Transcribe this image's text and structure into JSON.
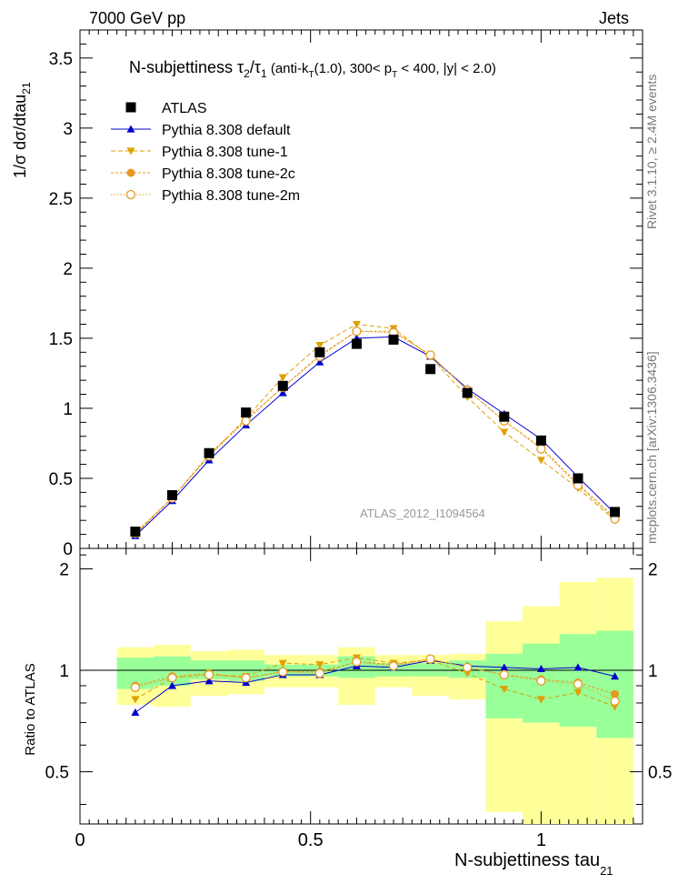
{
  "header": {
    "energy_label": "7000 GeV pp",
    "category_label": "Jets",
    "rivet_label": "Rivet 3.1.10, ≥ 2.4M events",
    "mcplots_label": "mcplots.cern.ch [arXiv:1306.3436]",
    "analysis_id": "ATLAS_2012_I1094564"
  },
  "chart_data": [
    {
      "type": "line",
      "panel": "main",
      "title": "N-subjettiness τ2/τ1 (anti-kT(1.0), 300< pT < 400, |y| < 2.0)",
      "ylabel": "1/σ dσ/dtau21",
      "xlim": [
        0,
        1.22
      ],
      "ylim": [
        0,
        3.7
      ],
      "yticks": [
        "0",
        "0.5",
        "1",
        "1.5",
        "2",
        "2.5",
        "3",
        "3.5"
      ],
      "x": [
        0.12,
        0.2,
        0.28,
        0.36,
        0.44,
        0.52,
        0.6,
        0.68,
        0.76,
        0.84,
        0.92,
        1.0,
        1.08,
        1.16
      ],
      "series": [
        {
          "name": "ATLAS",
          "color": "#000000",
          "marker": "square",
          "values": [
            0.12,
            0.38,
            0.68,
            0.97,
            1.16,
            1.4,
            1.46,
            1.49,
            1.28,
            1.11,
            0.94,
            0.77,
            0.5,
            0.26
          ]
        },
        {
          "name": "Pythia 8.308 default",
          "color": "#0000cc",
          "marker": "triangle-up",
          "values": [
            0.09,
            0.34,
            0.63,
            0.88,
            1.11,
            1.33,
            1.5,
            1.51,
            1.37,
            1.14,
            0.96,
            0.78,
            0.51,
            0.25
          ]
        },
        {
          "name": "Pythia 8.308 tune-1",
          "color": "#e0a000",
          "marker": "triangle-down",
          "values": [
            0.1,
            0.36,
            0.66,
            0.93,
            1.22,
            1.45,
            1.6,
            1.57,
            1.37,
            1.08,
            0.83,
            0.63,
            0.43,
            0.2
          ]
        },
        {
          "name": "Pythia 8.308 tune-2c",
          "color": "#e59a20",
          "marker": "circle",
          "values": [
            0.11,
            0.36,
            0.67,
            0.92,
            1.15,
            1.38,
            1.55,
            1.55,
            1.38,
            1.13,
            0.91,
            0.72,
            0.46,
            0.22
          ]
        },
        {
          "name": "Pythia 8.308 tune-2m",
          "color": "#e59a20",
          "marker": "circle-open",
          "values": [
            0.11,
            0.36,
            0.66,
            0.91,
            1.15,
            1.37,
            1.55,
            1.54,
            1.38,
            1.13,
            0.91,
            0.71,
            0.45,
            0.21
          ]
        }
      ]
    },
    {
      "type": "line",
      "panel": "ratio",
      "ylabel": "Ratio to ATLAS",
      "xlabel": "N-subjettiness tau21",
      "xlim": [
        0,
        1.22
      ],
      "ylim": [
        0.35,
        2.3
      ],
      "yticks": [
        "0.5",
        "1",
        "2"
      ],
      "xticks": [
        "0",
        "0.5",
        "1"
      ],
      "x": [
        0.12,
        0.2,
        0.28,
        0.36,
        0.44,
        0.52,
        0.6,
        0.68,
        0.76,
        0.84,
        0.92,
        1.0,
        1.08,
        1.16
      ],
      "bin_edges": [
        0.08,
        0.16,
        0.24,
        0.32,
        0.4,
        0.48,
        0.56,
        0.64,
        0.72,
        0.8,
        0.88,
        0.96,
        1.04,
        1.12,
        1.2
      ],
      "band_inner": [
        [
          0.88,
          1.09
        ],
        [
          0.9,
          1.1
        ],
        [
          0.94,
          1.07
        ],
        [
          0.93,
          1.07
        ],
        [
          0.96,
          1.04
        ],
        [
          0.96,
          1.04
        ],
        [
          0.95,
          1.1
        ],
        [
          0.96,
          1.05
        ],
        [
          0.96,
          1.05
        ],
        [
          0.95,
          1.07
        ],
        [
          0.72,
          1.12
        ],
        [
          0.7,
          1.2
        ],
        [
          0.68,
          1.28
        ],
        [
          0.63,
          1.31
        ]
      ],
      "band_outer": [
        [
          0.79,
          1.17
        ],
        [
          0.78,
          1.19
        ],
        [
          0.84,
          1.14
        ],
        [
          0.85,
          1.15
        ],
        [
          0.89,
          1.11
        ],
        [
          0.89,
          1.11
        ],
        [
          0.79,
          1.17
        ],
        [
          0.89,
          1.11
        ],
        [
          0.84,
          1.11
        ],
        [
          0.82,
          1.12
        ],
        [
          0.38,
          1.4
        ],
        [
          0.35,
          1.55
        ],
        [
          0.35,
          1.83
        ],
        [
          0.35,
          1.88
        ]
      ],
      "series": [
        {
          "name": "Pythia 8.308 default",
          "color": "#0000cc",
          "marker": "triangle-up",
          "values": [
            0.75,
            0.9,
            0.93,
            0.92,
            0.97,
            0.97,
            1.03,
            1.02,
            1.07,
            1.03,
            1.02,
            1.01,
            1.02,
            0.96
          ]
        },
        {
          "name": "Pythia 8.308 tune-1",
          "color": "#e0a000",
          "marker": "triangle-down",
          "values": [
            0.82,
            0.95,
            0.97,
            0.96,
            1.05,
            1.04,
            1.09,
            1.05,
            1.07,
            0.98,
            0.88,
            0.82,
            0.86,
            0.78
          ]
        },
        {
          "name": "Pythia 8.308 tune-2c",
          "color": "#e59a20",
          "marker": "circle",
          "values": [
            0.9,
            0.96,
            0.98,
            0.95,
            0.99,
            0.99,
            1.06,
            1.04,
            1.08,
            1.02,
            0.97,
            0.94,
            0.92,
            0.85
          ]
        },
        {
          "name": "Pythia 8.308 tune-2m",
          "color": "#e59a20",
          "marker": "circle-open",
          "values": [
            0.89,
            0.95,
            0.97,
            0.95,
            0.99,
            0.98,
            1.06,
            1.03,
            1.08,
            1.02,
            0.97,
            0.93,
            0.91,
            0.81
          ]
        }
      ]
    }
  ]
}
